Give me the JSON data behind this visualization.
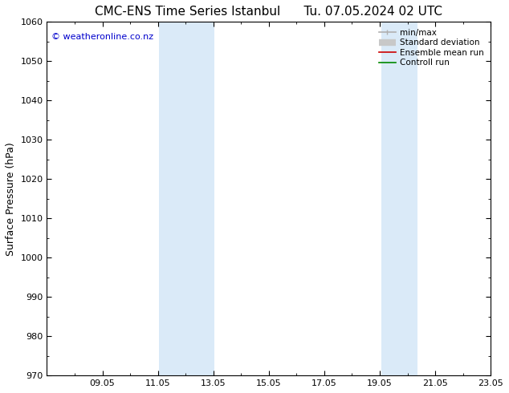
{
  "title": "CMC-ENS Time Series Istanbul",
  "title_right": "Tu. 07.05.2024 02 UTC",
  "ylabel": "Surface Pressure (hPa)",
  "ylim": [
    970,
    1060
  ],
  "yticks": [
    970,
    980,
    990,
    1000,
    1010,
    1020,
    1030,
    1040,
    1050,
    1060
  ],
  "xlim": [
    0.0,
    16.0
  ],
  "xtick_labels": [
    "09.05",
    "11.05",
    "13.05",
    "15.05",
    "17.05",
    "19.05",
    "21.05",
    "23.05"
  ],
  "xtick_positions": [
    2,
    4,
    6,
    8,
    10,
    12,
    14,
    16
  ],
  "shaded_bands": [
    {
      "x_start": 4.05,
      "x_end": 6.05,
      "color": "#daeaf8"
    },
    {
      "x_start": 12.05,
      "x_end": 13.35,
      "color": "#daeaf8"
    }
  ],
  "copyright_text": "© weatheronline.co.nz",
  "legend_items": [
    {
      "label": "min/max",
      "color": "#b0b0b0",
      "lw": 1.2
    },
    {
      "label": "Standard deviation",
      "color": "#c8c8c8",
      "lw": 6
    },
    {
      "label": "Ensemble mean run",
      "color": "#cc0000",
      "lw": 1.2
    },
    {
      "label": "Controll run",
      "color": "#008800",
      "lw": 1.2
    }
  ],
  "bg_color": "#ffffff",
  "title_fontsize": 11,
  "ylabel_fontsize": 9,
  "tick_fontsize": 8,
  "legend_fontsize": 7.5,
  "copyright_fontsize": 8
}
